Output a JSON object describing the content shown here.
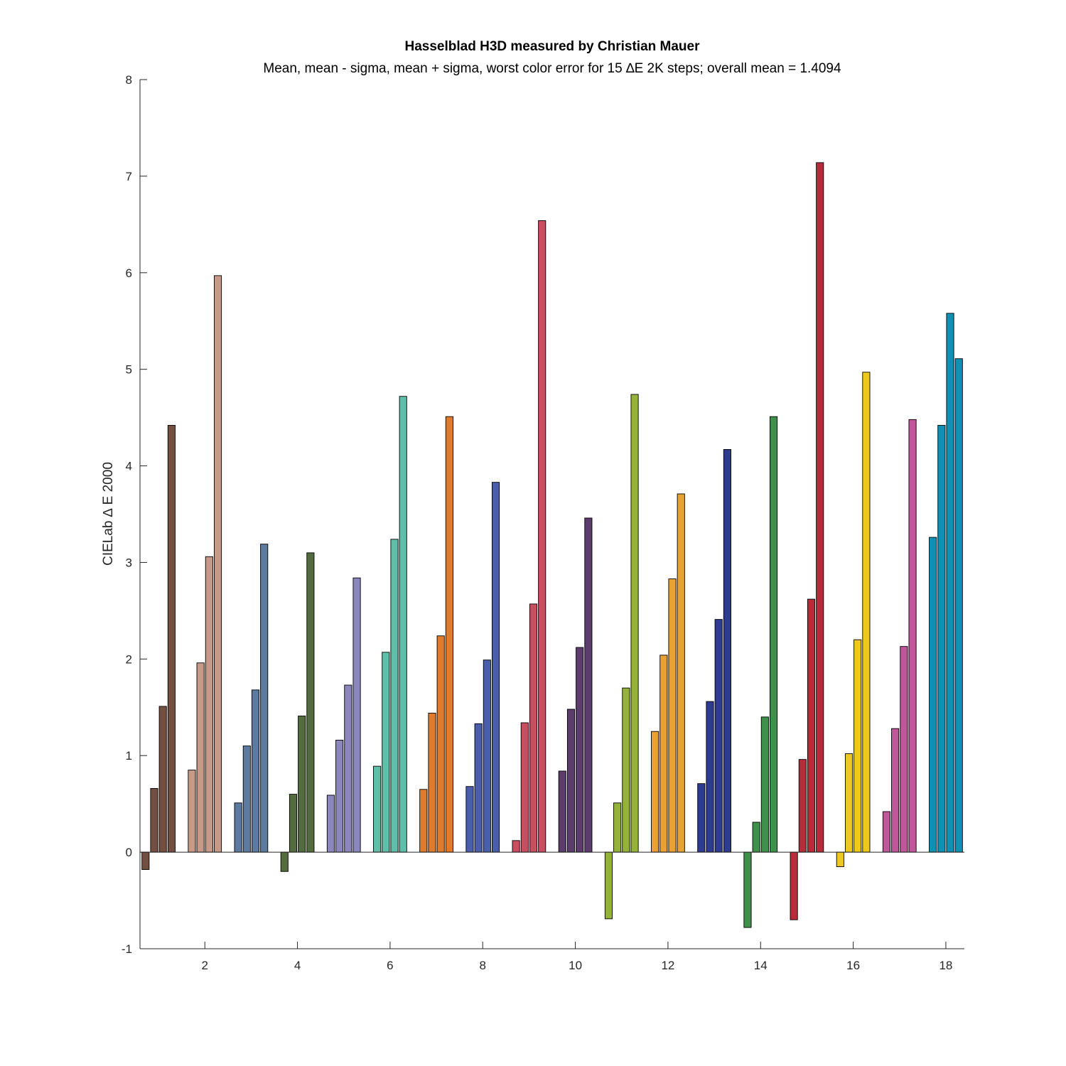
{
  "chart_data": {
    "type": "bar",
    "title": "Hasselblad H3D measured by Christian Mauer",
    "subtitle": "Mean, mean - sigma, mean + sigma, worst color error for 15 ∆E 2K steps; overall mean = 1.4094",
    "xlabel": "",
    "ylabel": "CIELab ∆ E 2000",
    "xlim": [
      0.6,
      18.4
    ],
    "ylim": [
      -1,
      8
    ],
    "x_ticks": [
      2,
      4,
      6,
      8,
      10,
      12,
      14,
      16,
      18
    ],
    "y_ticks": [
      -1,
      0,
      1,
      2,
      3,
      4,
      5,
      6,
      7,
      8
    ],
    "grid": false,
    "legend": "none",
    "series_names": [
      "mean - sigma",
      "mean",
      "mean + sigma",
      "worst"
    ],
    "groups": [
      {
        "x": 1,
        "color": "#734f41",
        "values": [
          -0.18,
          0.66,
          1.51,
          4.42
        ]
      },
      {
        "x": 2,
        "color": "#c79a88",
        "values": [
          0.85,
          1.96,
          3.06,
          5.97
        ]
      },
      {
        "x": 3,
        "color": "#5d7aa1",
        "values": [
          0.51,
          1.1,
          1.68,
          3.19
        ]
      },
      {
        "x": 4,
        "color": "#546a3f",
        "values": [
          -0.2,
          0.6,
          1.41,
          3.1
        ]
      },
      {
        "x": 5,
        "color": "#8b87bc",
        "values": [
          0.59,
          1.16,
          1.73,
          2.84
        ]
      },
      {
        "x": 6,
        "color": "#60bfa8",
        "values": [
          0.89,
          2.07,
          3.24,
          4.72
        ]
      },
      {
        "x": 7,
        "color": "#df7b2c",
        "values": [
          0.65,
          1.44,
          2.24,
          4.51
        ]
      },
      {
        "x": 8,
        "color": "#4a5eab",
        "values": [
          0.68,
          1.33,
          1.99,
          3.83
        ]
      },
      {
        "x": 9,
        "color": "#c94f60",
        "values": [
          0.12,
          1.34,
          2.57,
          6.54
        ]
      },
      {
        "x": 10,
        "color": "#5b3c6c",
        "values": [
          0.84,
          1.48,
          2.12,
          3.46
        ]
      },
      {
        "x": 11,
        "color": "#95b33a",
        "values": [
          -0.69,
          0.51,
          1.7,
          4.74
        ]
      },
      {
        "x": 12,
        "color": "#e9a133",
        "values": [
          1.25,
          2.04,
          2.83,
          3.71
        ]
      },
      {
        "x": 13,
        "color": "#2e3b93",
        "values": [
          0.71,
          1.56,
          2.41,
          4.17
        ]
      },
      {
        "x": 14,
        "color": "#3f904a",
        "values": [
          -0.78,
          0.31,
          1.4,
          4.51
        ]
      },
      {
        "x": 15,
        "color": "#b72b3a",
        "values": [
          -0.7,
          0.96,
          2.62,
          7.14
        ]
      },
      {
        "x": 16,
        "color": "#eec81c",
        "values": [
          -0.15,
          1.02,
          2.2,
          4.97
        ]
      },
      {
        "x": 17,
        "color": "#c2569a",
        "values": [
          0.42,
          1.28,
          2.13,
          4.48
        ]
      },
      {
        "x": 18,
        "color": "#0e91b3",
        "values": [
          3.26,
          4.42,
          5.58,
          5.11
        ]
      }
    ]
  }
}
